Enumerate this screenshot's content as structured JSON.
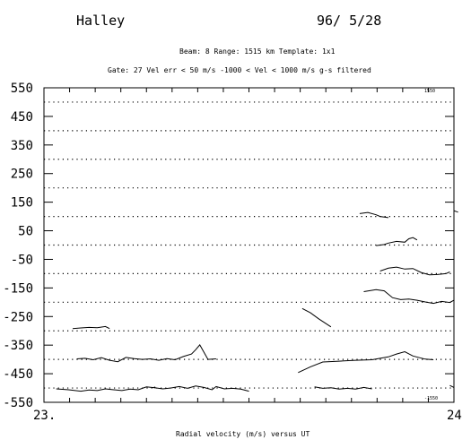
{
  "header": {
    "station": "Halley",
    "date": "96/ 5/28",
    "line1": "Beam:  8   Range: 1515 km    Template: 1x1",
    "line2": "Gate: 27    Vel err < 50 m/s   -1000 < Vel < 1000 m/s   g-s filtered"
  },
  "chart_data": {
    "type": "line",
    "title": "",
    "xlabel": "Radial velocity (m/s)  versus  UT",
    "ylabel": "",
    "xlim": [
      23,
      24
    ],
    "x_tick_labels": [
      "23.",
      "24"
    ],
    "ylim": [
      -550,
      550
    ],
    "y_ticks": [
      550,
      450,
      350,
      250,
      150,
      50,
      -50,
      -150,
      -250,
      -350,
      -450,
      -550
    ],
    "grid": "dotted horizontal lines at -500, -400 ... 500",
    "corner_labels": {
      "top_right": "1550",
      "bottom_right": "-1550"
    },
    "series": [
      {
        "values": [
          [
            23.03,
            -503
          ],
          [
            23.06,
            -506
          ],
          [
            23.09,
            -511
          ],
          [
            23.11,
            -507
          ],
          [
            23.13,
            -509
          ],
          [
            23.15,
            -503
          ],
          [
            23.17,
            -506
          ],
          [
            23.19,
            -509
          ],
          [
            23.21,
            -504
          ],
          [
            23.23,
            -506
          ],
          [
            23.25,
            -496
          ],
          [
            23.27,
            -499
          ],
          [
            23.29,
            -503
          ],
          [
            23.31,
            -500
          ],
          [
            23.33,
            -495
          ],
          [
            23.35,
            -501
          ],
          [
            23.37,
            -493
          ],
          [
            23.39,
            -498
          ],
          [
            23.41,
            -506
          ],
          [
            23.42,
            -495
          ],
          [
            23.44,
            -503
          ],
          [
            23.46,
            -501
          ],
          [
            23.48,
            -504
          ],
          [
            23.5,
            -511
          ]
        ]
      },
      {
        "values": [
          [
            23.08,
            -398
          ],
          [
            23.1,
            -396
          ],
          [
            23.12,
            -401
          ],
          [
            23.14,
            -394
          ],
          [
            23.16,
            -403
          ],
          [
            23.18,
            -408
          ],
          [
            23.2,
            -393
          ],
          [
            23.22,
            -397
          ],
          [
            23.24,
            -400
          ],
          [
            23.26,
            -398
          ],
          [
            23.28,
            -403
          ],
          [
            23.3,
            -397
          ],
          [
            23.32,
            -401
          ],
          [
            23.34,
            -390
          ],
          [
            23.36,
            -381
          ],
          [
            23.37,
            -366
          ],
          [
            23.38,
            -349
          ],
          [
            23.4,
            -400
          ],
          [
            23.42,
            -398
          ]
        ]
      },
      {
        "values": [
          [
            23.07,
            -292
          ],
          [
            23.09,
            -290
          ],
          [
            23.11,
            -288
          ],
          [
            23.13,
            -289
          ],
          [
            23.15,
            -285
          ],
          [
            23.16,
            -292
          ]
        ]
      },
      {
        "values": [
          [
            23.27,
            -498
          ]
        ]
      },
      {
        "values": [
          [
            23.63,
            -222
          ],
          [
            23.65,
            -237
          ],
          [
            23.67,
            -258
          ],
          [
            23.7,
            -286
          ]
        ]
      },
      {
        "values": [
          [
            23.62,
            -446
          ],
          [
            23.65,
            -426
          ],
          [
            23.68,
            -409
          ],
          [
            23.72,
            -406
          ],
          [
            23.76,
            -403
          ],
          [
            23.8,
            -401
          ],
          [
            23.82,
            -396
          ],
          [
            23.84,
            -391
          ],
          [
            23.86,
            -381
          ],
          [
            23.88,
            -373
          ],
          [
            23.9,
            -388
          ],
          [
            23.93,
            -399
          ],
          [
            23.95,
            -401
          ]
        ]
      },
      {
        "values": [
          [
            23.66,
            -496
          ],
          [
            23.68,
            -501
          ],
          [
            23.7,
            -499
          ],
          [
            23.72,
            -504
          ],
          [
            23.74,
            -501
          ],
          [
            23.76,
            -504
          ],
          [
            23.78,
            -498
          ],
          [
            23.8,
            -503
          ]
        ]
      },
      {
        "values": [
          [
            23.78,
            -163
          ],
          [
            23.81,
            -156
          ],
          [
            23.83,
            -160
          ],
          [
            23.85,
            -184
          ],
          [
            23.87,
            -191
          ],
          [
            23.89,
            -189
          ],
          [
            23.91,
            -193
          ],
          [
            23.93,
            -199
          ],
          [
            23.95,
            -204
          ],
          [
            23.97,
            -197
          ],
          [
            23.99,
            -201
          ],
          [
            24.0,
            -193
          ]
        ]
      },
      {
        "values": [
          [
            23.82,
            -91
          ],
          [
            23.84,
            -81
          ],
          [
            23.86,
            -77
          ],
          [
            23.88,
            -84
          ],
          [
            23.9,
            -82
          ],
          [
            23.92,
            -96
          ],
          [
            23.94,
            -104
          ],
          [
            23.96,
            -103
          ],
          [
            23.98,
            -100
          ],
          [
            23.99,
            -94
          ]
        ]
      },
      {
        "values": [
          [
            23.81,
            -2
          ],
          [
            23.83,
            2
          ],
          [
            23.84,
            7
          ],
          [
            23.86,
            13
          ],
          [
            23.88,
            10
          ],
          [
            23.89,
            22
          ],
          [
            23.9,
            26
          ],
          [
            23.91,
            18
          ]
        ]
      },
      {
        "values": [
          [
            23.77,
            110
          ],
          [
            23.79,
            114
          ],
          [
            23.81,
            106
          ],
          [
            23.82,
            100
          ],
          [
            23.84,
            96
          ]
        ]
      },
      {
        "values": [
          [
            24.0,
            120
          ],
          [
            24.01,
            115
          ]
        ]
      },
      {
        "values": [
          [
            23.99,
            -491
          ],
          [
            24.0,
            -498
          ]
        ]
      }
    ]
  }
}
